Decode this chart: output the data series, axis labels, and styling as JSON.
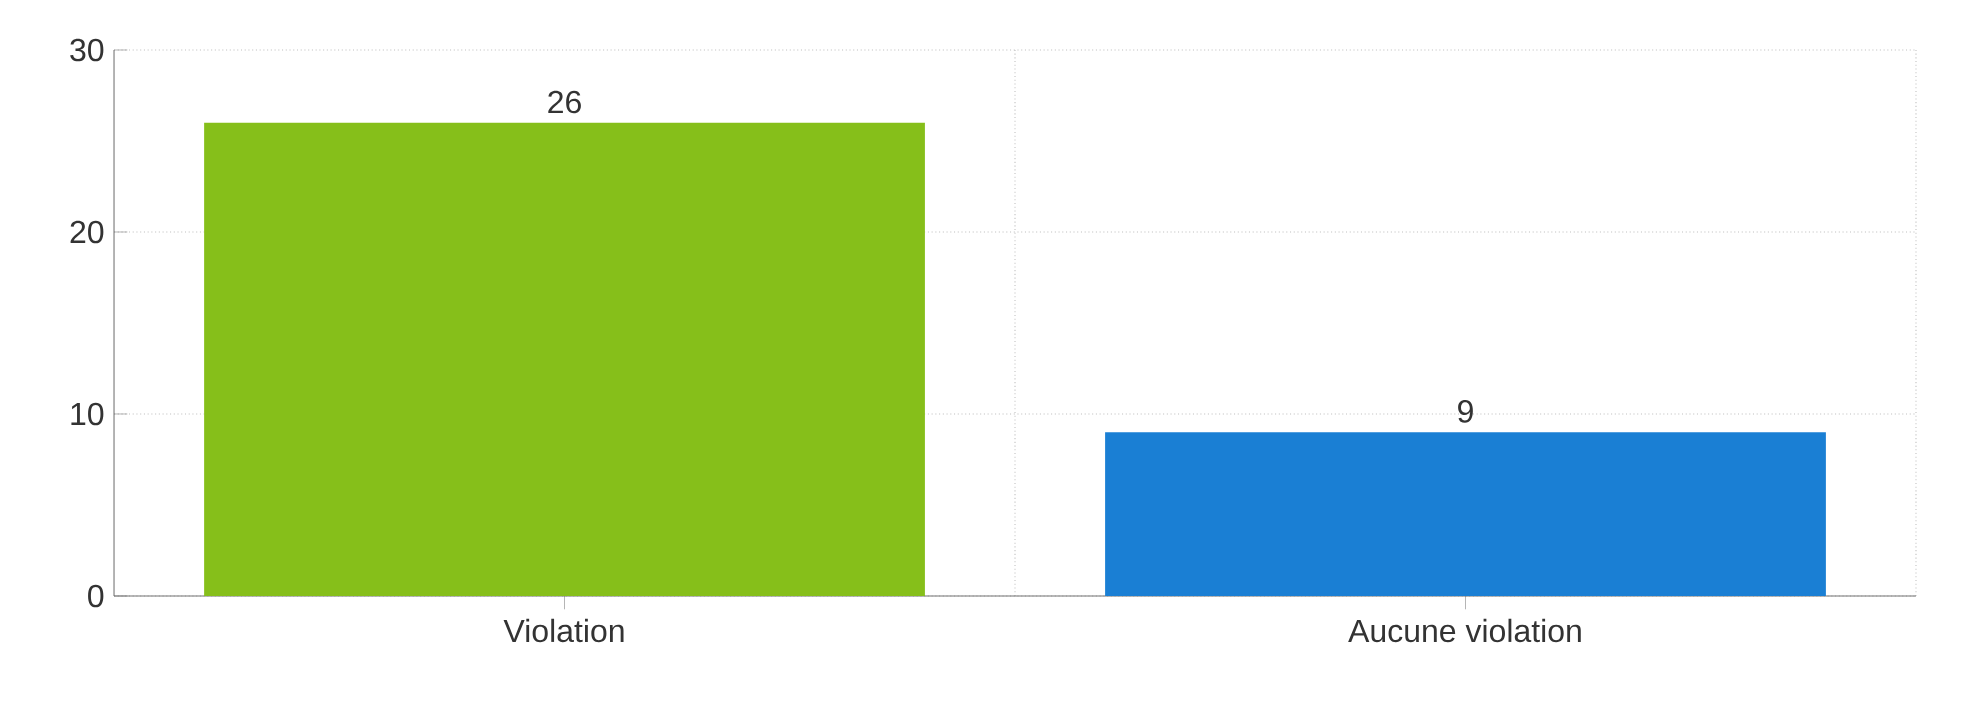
{
  "chart_data": {
    "type": "bar",
    "categories": [
      "Violation",
      "Aucune violation"
    ],
    "values": [
      26,
      9
    ],
    "colors": [
      "#86bf1a",
      "#1a7fd4"
    ],
    "ylim": [
      0,
      30
    ],
    "yticks": [
      0,
      10,
      20,
      30
    ],
    "grid": true,
    "data_labels": true
  }
}
